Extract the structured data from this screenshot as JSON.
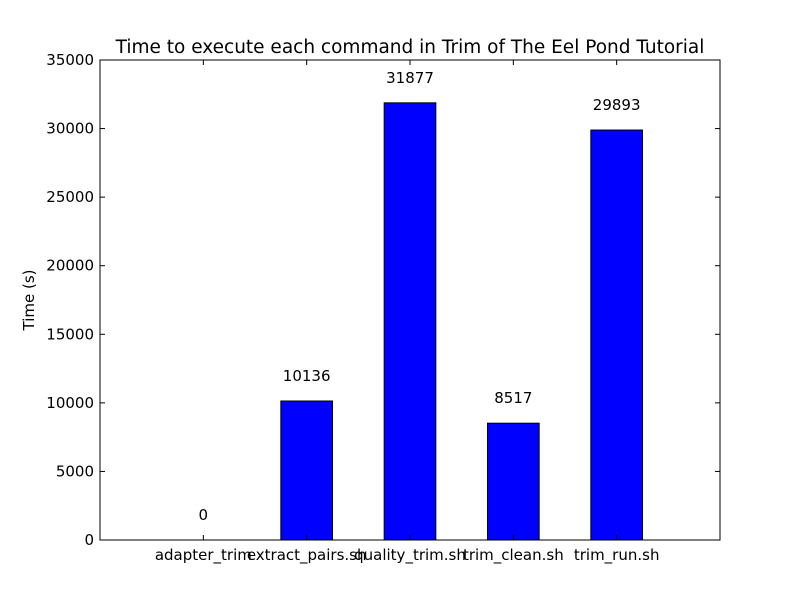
{
  "chart_data": {
    "type": "bar",
    "title": "Time to execute each command in Trim of The Eel Pond Tutorial",
    "xlabel": "",
    "ylabel": "Time (s)",
    "categories": [
      "adapter_trim",
      "extract_pairs.sh",
      "quality_trim.sh",
      "trim_clean.sh",
      "trim_run.sh"
    ],
    "values": [
      0,
      10136,
      31877,
      8517,
      29893
    ],
    "value_labels": [
      "0",
      "10136",
      "31877",
      "8517",
      "29893"
    ],
    "ylim": [
      0,
      35000
    ],
    "xlim": [
      -1,
      5
    ],
    "yticks": [
      0,
      5000,
      10000,
      15000,
      20000,
      25000,
      30000,
      35000
    ],
    "ytick_labels": [
      "0",
      "5000",
      "10000",
      "15000",
      "20000",
      "25000",
      "30000",
      "35000"
    ],
    "grid": false,
    "bar_color": "#0000ff",
    "edge_color": "#000000"
  }
}
